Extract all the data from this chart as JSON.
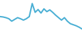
{
  "x": [
    0,
    1,
    2,
    3,
    4,
    5,
    6,
    7,
    8,
    9,
    10,
    11,
    12,
    13,
    14,
    15,
    16,
    17,
    18,
    19,
    20,
    21,
    22,
    23,
    24,
    25,
    26,
    27,
    28
  ],
  "y": [
    3.8,
    3.7,
    3.5,
    3.2,
    2.5,
    3.0,
    3.5,
    3.2,
    2.8,
    3.2,
    3.8,
    7.5,
    5.0,
    5.8,
    4.8,
    6.0,
    5.2,
    5.7,
    5.0,
    4.2,
    3.5,
    2.8,
    3.5,
    2.5,
    1.8,
    1.5,
    1.2,
    0.8,
    0.3
  ],
  "line_color": "#4aafd4",
  "linewidth": 1.5,
  "background_color": "#ffffff",
  "ylim": [
    0.0,
    8.5
  ],
  "xlim": [
    0,
    28
  ]
}
